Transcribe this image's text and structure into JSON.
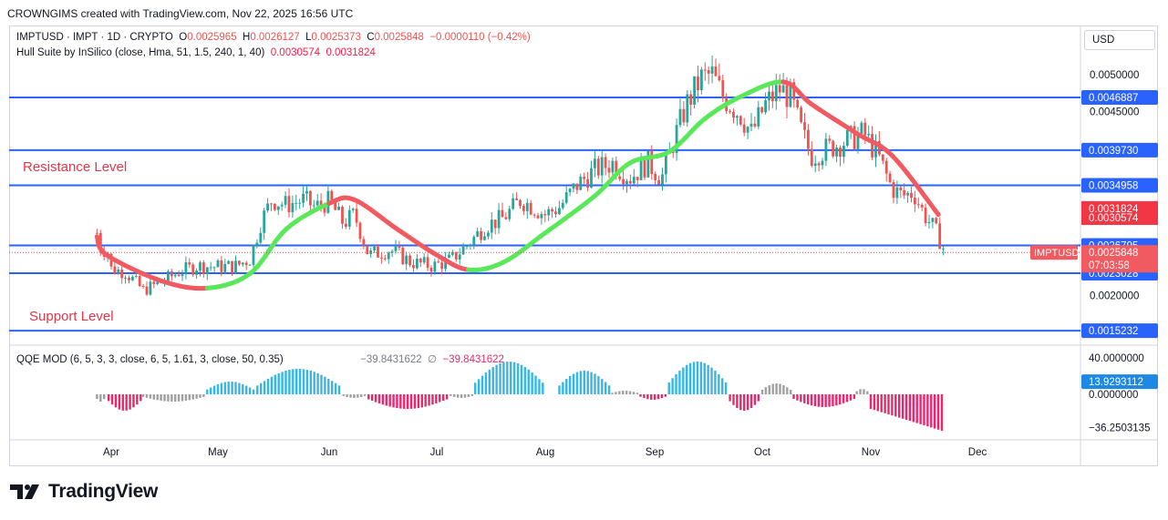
{
  "header": {
    "text": "CROWNGIMS created with TradingView.com, Nov 22, 2025 16:56 UTC"
  },
  "legend": {
    "symbol": "IMPTUSD · IMPT · 1D · CRYPTO",
    "o_label": "O",
    "o_value": "0.0025965",
    "h_label": "H",
    "h_value": "0.0026127",
    "l_label": "L",
    "l_value": "0.0025373",
    "c_label": "C",
    "c_value": "0.0025848",
    "change": "−0.0000110 (−0.42%)",
    "hull_name": "Hull Suite by InSilico (close, Hma, 51, 1.5, 240, 1, 40)",
    "hull_v1": "0.0030574",
    "hull_v2": "0.0031824"
  },
  "indicator_legend": {
    "name": "QQE MOD (6, 5, 3, 3, close, 6, 5, 1.61, 3, close, 50, 0.35)",
    "v1": "−39.8431622",
    "symbol": "∅",
    "v2": "−39.8431622"
  },
  "currency": "USD",
  "annotations": {
    "resistance": "Resistance Level",
    "support": "Support Level"
  },
  "brand": "TradingView",
  "colors": {
    "up": "#26a69a",
    "down": "#ef5350",
    "level": "#2962ff",
    "hull_up": "#5ae85a",
    "hull_down": "#f05a60",
    "qqe_up": "#36b6e6",
    "qqe_down": "#e6286e",
    "qqe_gray": "#a0a0a0"
  },
  "chart_data": {
    "type": "candlestick",
    "symbol": "IMPTUSD",
    "timeframe": "1D",
    "price_axis_ticks": [
      "0.0050000",
      "0.0045000",
      "0.0020000"
    ],
    "x_axis_labels": [
      "Apr",
      "May",
      "Jun",
      "Jul",
      "Aug",
      "Sep",
      "Oct",
      "Nov",
      "Dec"
    ],
    "horizontal_levels": [
      {
        "label": "0.0046887",
        "value": 0.0046887
      },
      {
        "label": "0.0039730",
        "value": 0.003973
      },
      {
        "label": "0.0034958",
        "value": 0.0034958
      },
      {
        "label": "0.0026795",
        "value": 0.0026795
      },
      {
        "label": "0.0023028",
        "value": 0.0023028
      },
      {
        "label": "0.0015232",
        "value": 0.0015232
      }
    ],
    "price_tags": [
      {
        "label": "0.0031824",
        "value": 0.0031824,
        "kind": "hull-upper"
      },
      {
        "label": "0.0030574",
        "value": 0.0030574,
        "kind": "hull-lower"
      },
      {
        "label": "0.0025848",
        "value": 0.0025848,
        "kind": "last-price",
        "countdown": "07:03:58",
        "symbol": "IMPTUSD"
      }
    ],
    "close_path": [
      [
        "03-10",
        0.00285
      ],
      [
        "03-15",
        0.00265
      ],
      [
        "03-20",
        0.00262
      ],
      [
        "03-25",
        0.00265
      ],
      [
        "04-01",
        0.00236
      ],
      [
        "04-05",
        0.00232
      ],
      [
        "04-10",
        0.00207
      ],
      [
        "04-15",
        0.00218
      ],
      [
        "04-20",
        0.00232
      ],
      [
        "04-25",
        0.0024
      ],
      [
        "05-01",
        0.00239
      ],
      [
        "05-06",
        0.0024
      ],
      [
        "05-10",
        0.0025
      ],
      [
        "05-13",
        0.003
      ],
      [
        "05-16",
        0.0033
      ],
      [
        "05-20",
        0.00323
      ],
      [
        "05-25",
        0.0033
      ],
      [
        "05-28",
        0.0032
      ],
      [
        "06-01",
        0.00328
      ],
      [
        "06-05",
        0.00298
      ],
      [
        "06-08",
        0.0031
      ],
      [
        "06-12",
        0.00255
      ],
      [
        "06-18",
        0.00262
      ],
      [
        "06-24",
        0.00245
      ],
      [
        "06-30",
        0.0024
      ],
      [
        "07-05",
        0.00248
      ],
      [
        "07-10",
        0.0027
      ],
      [
        "07-15",
        0.00295
      ],
      [
        "07-20",
        0.00305
      ],
      [
        "07-25",
        0.0033
      ],
      [
        "08-01",
        0.0031
      ],
      [
        "08-05",
        0.0032
      ],
      [
        "08-10",
        0.0035
      ],
      [
        "08-15",
        0.0037
      ],
      [
        "08-20",
        0.0038
      ],
      [
        "08-25",
        0.0036
      ],
      [
        "08-30",
        0.0038
      ],
      [
        "09-03",
        0.0036
      ],
      [
        "09-07",
        0.0042
      ],
      [
        "09-10",
        0.0046
      ],
      [
        "09-14",
        0.00495
      ],
      [
        "09-17",
        0.005
      ],
      [
        "09-20",
        0.0047
      ],
      [
        "09-25",
        0.00445
      ],
      [
        "09-28",
        0.0042
      ],
      [
        "10-02",
        0.0046
      ],
      [
        "10-06",
        0.0048
      ],
      [
        "10-09",
        0.0047
      ],
      [
        "10-12",
        0.00425
      ],
      [
        "10-15",
        0.0039
      ],
      [
        "10-20",
        0.004
      ],
      [
        "10-25",
        0.0041
      ],
      [
        "10-30",
        0.0042
      ],
      [
        "11-03",
        0.0039
      ],
      [
        "11-07",
        0.00345
      ],
      [
        "11-10",
        0.00335
      ],
      [
        "11-13",
        0.0034
      ],
      [
        "11-16",
        0.0031
      ],
      [
        "11-19",
        0.0029
      ],
      [
        "11-22",
        0.0025848
      ]
    ],
    "hull_ma": [
      [
        "03-10",
        0.0028,
        "down"
      ],
      [
        "03-25",
        0.00255,
        "down"
      ],
      [
        "04-15",
        0.0022,
        "down"
      ],
      [
        "04-28",
        0.0021,
        "down"
      ],
      [
        "05-10",
        0.0023,
        "up"
      ],
      [
        "05-20",
        0.0029,
        "up"
      ],
      [
        "06-01",
        0.00325,
        "up"
      ],
      [
        "06-08",
        0.0033,
        "down"
      ],
      [
        "06-20",
        0.0029,
        "down"
      ],
      [
        "07-01",
        0.00255,
        "down"
      ],
      [
        "07-10",
        0.00235,
        "down"
      ],
      [
        "07-20",
        0.00245,
        "up"
      ],
      [
        "08-01",
        0.00285,
        "up"
      ],
      [
        "08-15",
        0.00335,
        "up"
      ],
      [
        "08-25",
        0.0038,
        "up"
      ],
      [
        "09-05",
        0.00395,
        "up"
      ],
      [
        "09-15",
        0.0044,
        "up"
      ],
      [
        "09-25",
        0.0047,
        "up"
      ],
      [
        "10-07",
        0.0049,
        "up"
      ],
      [
        "10-15",
        0.0046,
        "down"
      ],
      [
        "10-28",
        0.0042,
        "down"
      ],
      [
        "11-07",
        0.0039,
        "down"
      ],
      [
        "11-20",
        0.0031,
        "down"
      ]
    ],
    "qqe": {
      "axis_ticks": [
        "40.0000000",
        "13.9293112",
        "0.0000000",
        "−36.2503135"
      ],
      "zero_level": 0,
      "last_value": -39.8431622,
      "segments": [
        {
          "from": "03-10",
          "to": "03-28",
          "color": "gray",
          "peak": -8
        },
        {
          "from": "03-28",
          "to": "04-10",
          "color": "pink",
          "peak": -18
        },
        {
          "from": "04-10",
          "to": "04-28",
          "color": "gray",
          "peak": -8
        },
        {
          "from": "04-28",
          "to": "05-12",
          "color": "blue",
          "peak": 14
        },
        {
          "from": "05-12",
          "to": "06-05",
          "color": "blue",
          "peak": 28
        },
        {
          "from": "06-05",
          "to": "06-12",
          "color": "gray",
          "peak": -4
        },
        {
          "from": "06-12",
          "to": "07-05",
          "color": "pink",
          "peak": -16
        },
        {
          "from": "07-05",
          "to": "07-12",
          "color": "gray",
          "peak": -4
        },
        {
          "from": "07-12",
          "to": "08-01",
          "color": "blue",
          "peak": 36
        },
        {
          "from": "08-05",
          "to": "08-20",
          "color": "blue",
          "peak": 26
        },
        {
          "from": "08-20",
          "to": "08-28",
          "color": "gray",
          "peak": 4
        },
        {
          "from": "08-28",
          "to": "09-05",
          "color": "pink",
          "peak": -6
        },
        {
          "from": "09-05",
          "to": "09-22",
          "color": "blue",
          "peak": 36
        },
        {
          "from": "09-22",
          "to": "10-01",
          "color": "pink",
          "peak": -18
        },
        {
          "from": "10-01",
          "to": "10-10",
          "color": "gray",
          "peak": 12
        },
        {
          "from": "10-10",
          "to": "10-28",
          "color": "pink",
          "peak": -14
        },
        {
          "from": "10-28",
          "to": "11-01",
          "color": "gray",
          "peak": 6
        },
        {
          "from": "11-01",
          "to": "11-22",
          "color": "pink",
          "peak": -40
        }
      ]
    }
  }
}
